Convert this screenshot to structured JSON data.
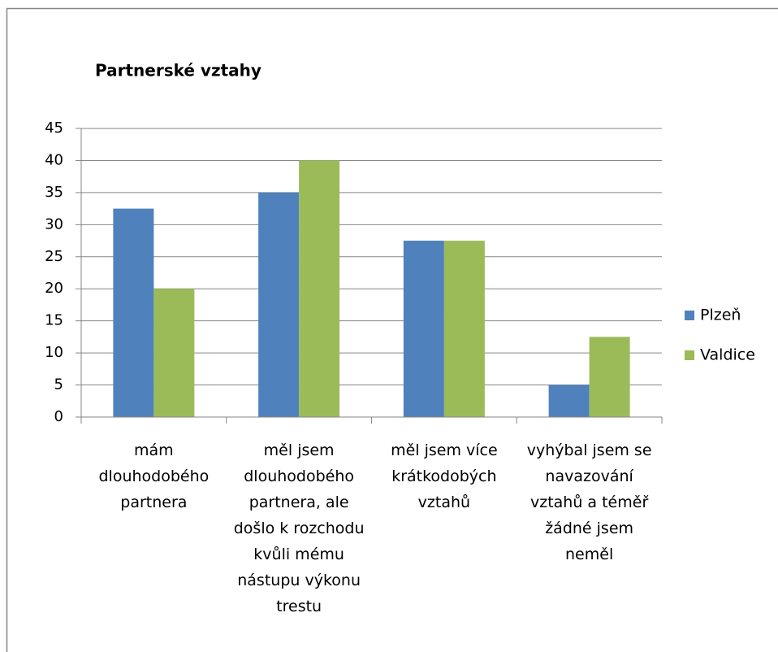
{
  "chart_data": {
    "type": "bar",
    "title": "Partnerské vztahy",
    "categories": [
      "mám dlouhodobého partnera",
      "měl jsem dlouhodobého partnera, ale došlo k rozchodu kvůli mému nástupu výkonu trestu",
      "měl jsem více krátkodobých vztahů",
      "vyhýbal jsem se navazování vztahů a téměř žádné jsem neměl"
    ],
    "series": [
      {
        "name": "Plzeň",
        "color": "#4f81bd",
        "values": [
          32.5,
          35,
          27.5,
          5
        ]
      },
      {
        "name": "Valdice",
        "color": "#9bbb59",
        "values": [
          20,
          40,
          27.5,
          12.5
        ]
      }
    ],
    "ylim": [
      0,
      45
    ],
    "yticks": [
      0,
      5,
      10,
      15,
      20,
      25,
      30,
      35,
      40,
      45
    ],
    "grid": true,
    "legend": "right"
  }
}
